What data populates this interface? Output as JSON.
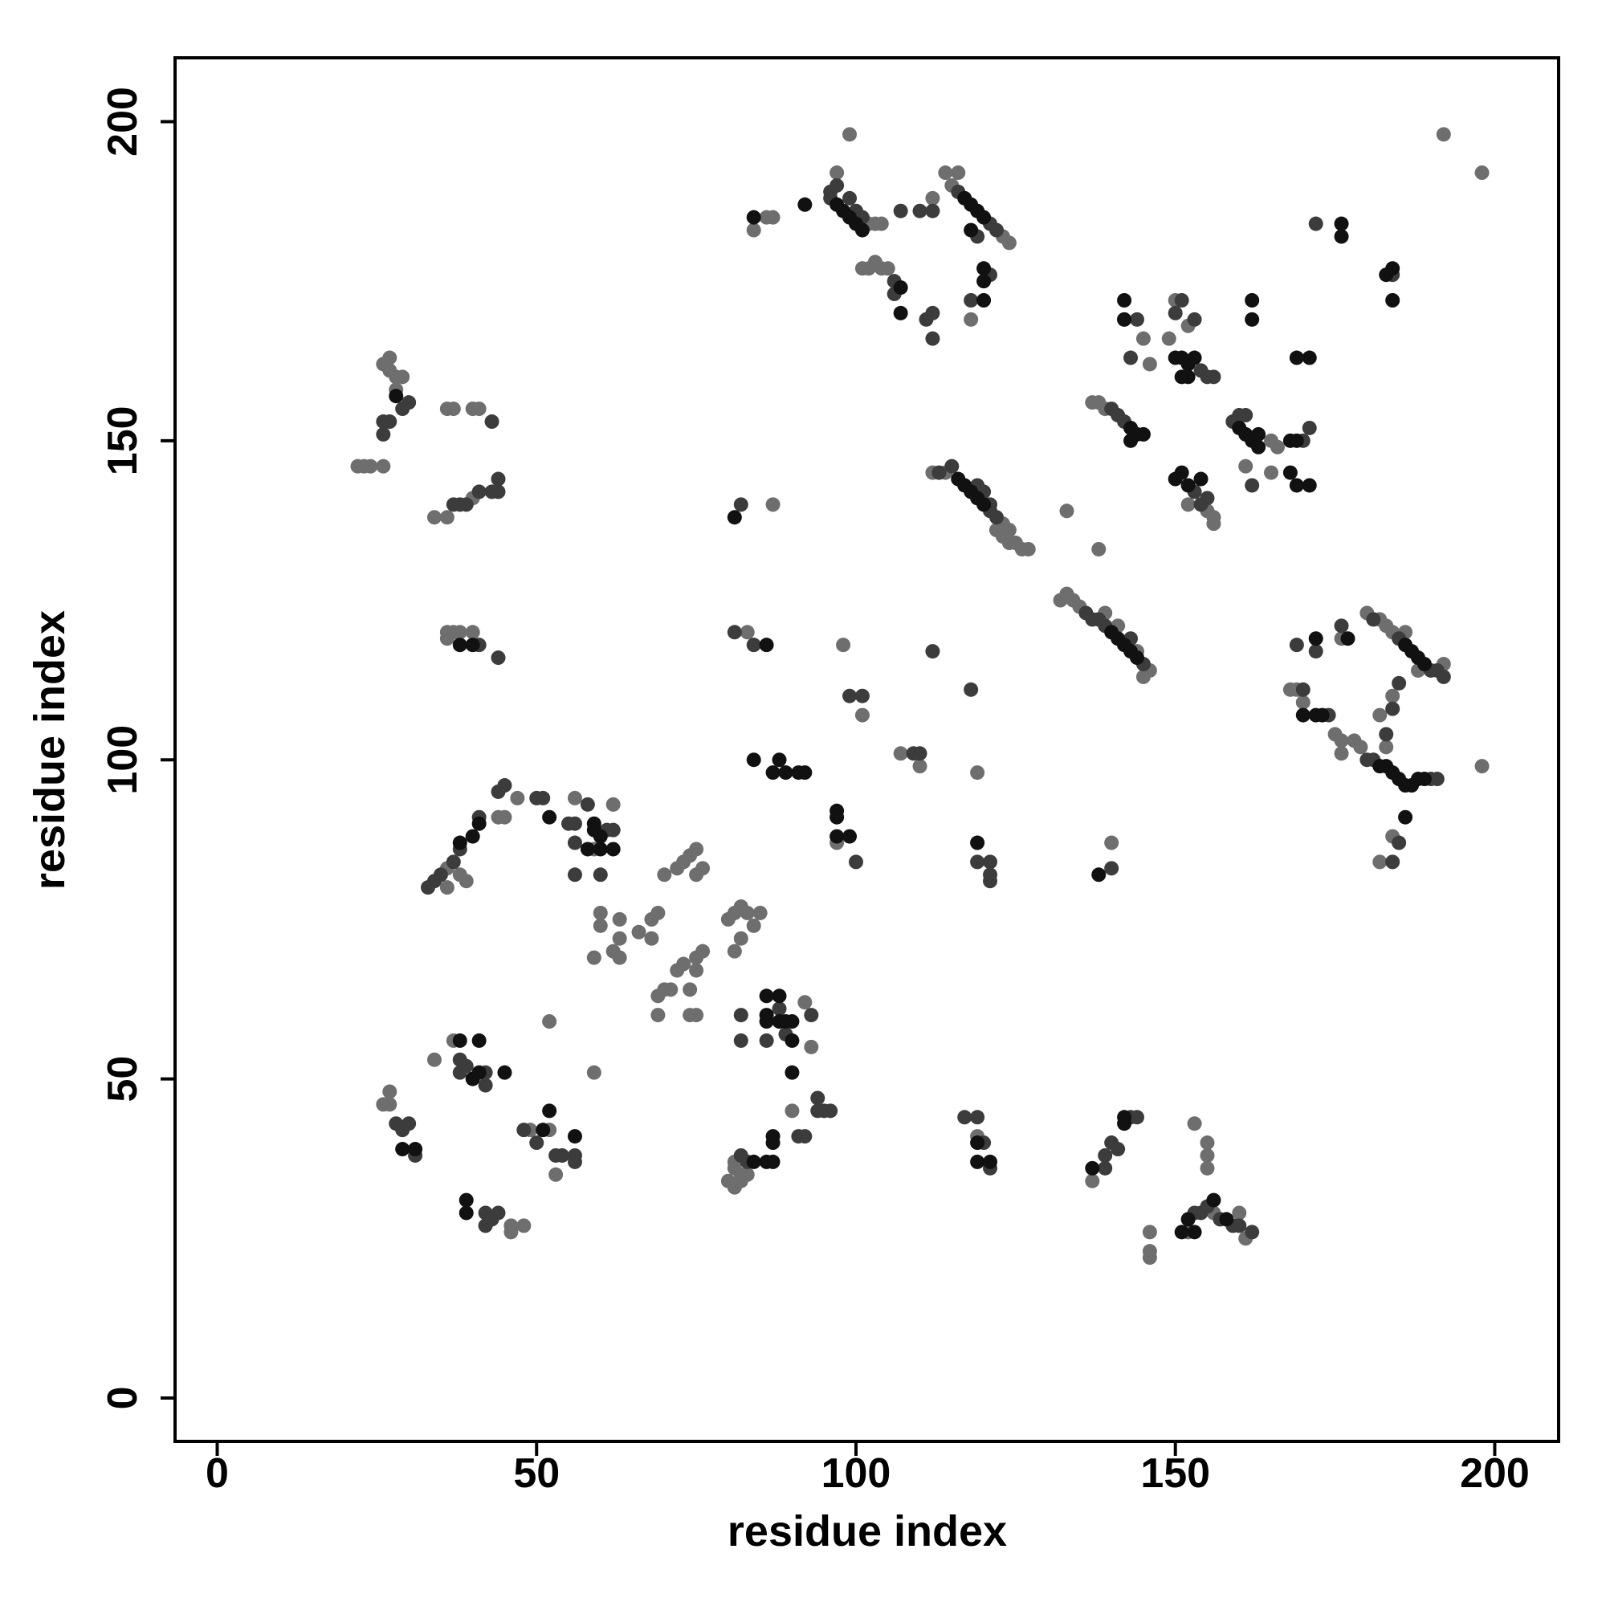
{
  "chart_data": {
    "type": "scatter",
    "xlabel": "residue index",
    "ylabel": "residue index",
    "xlim": [
      -6.6,
      210
    ],
    "ylim": [
      -6.8,
      210
    ],
    "xticks": [
      0,
      50,
      100,
      150,
      200
    ],
    "yticks": [
      0,
      50,
      100,
      150,
      200
    ],
    "series": [
      {
        "color": "#6e6e6e",
        "x": [
          22,
          23,
          24,
          26,
          26,
          27,
          27,
          28,
          29,
          28,
          36,
          37,
          40,
          41,
          34,
          36,
          40,
          36,
          37,
          38,
          36,
          40,
          36,
          38,
          39,
          36,
          47,
          45,
          44,
          56,
          62,
          59,
          60,
          60,
          59,
          63,
          63,
          62,
          63,
          66,
          68,
          69,
          68,
          70,
          69,
          69,
          71,
          72,
          74,
          74,
          75,
          75,
          76,
          75,
          73,
          70,
          72,
          73,
          74,
          75,
          75,
          76,
          80,
          81,
          82,
          83,
          84,
          85,
          81,
          82,
          92,
          93,
          90,
          80,
          81,
          81,
          81,
          82,
          82,
          83,
          26,
          27,
          27,
          34,
          37,
          46,
          48,
          46,
          49,
          52,
          53,
          52,
          59,
          99,
          97,
          102,
          103,
          104,
          101,
          102,
          103,
          104,
          105,
          84,
          86,
          87,
          112,
          114,
          116,
          115,
          123,
          124,
          118,
          192,
          198,
          145,
          146,
          149,
          150,
          152,
          137,
          138,
          139,
          155,
          156,
          156,
          152,
          161,
          165,
          165,
          166,
          112,
          114,
          123,
          124,
          125,
          126,
          127,
          122,
          123,
          124,
          133,
          138,
          132,
          133,
          134,
          135,
          139,
          141,
          144,
          146,
          145,
          180,
          182,
          183,
          184,
          192,
          176,
          168,
          169,
          170,
          175,
          176,
          176,
          178,
          179,
          182,
          183,
          184,
          188,
          186,
          184,
          182,
          198,
          98,
          101,
          110,
          119,
          107,
          83,
          87,
          140,
          137,
          146,
          146,
          146,
          152,
          153,
          155,
          155,
          155,
          160,
          161,
          156,
          97,
          119
        ],
        "y": [
          146,
          146,
          146,
          146,
          162,
          163,
          161,
          160,
          160,
          158,
          155,
          155,
          155,
          155,
          138,
          138,
          141,
          120,
          120,
          120,
          119,
          120,
          83,
          82,
          81,
          80,
          94,
          91,
          91,
          94,
          93,
          86,
          76,
          74,
          69,
          75,
          72,
          70,
          69,
          73,
          75,
          76,
          72,
          64,
          60,
          63,
          64,
          67,
          64,
          60,
          60,
          69,
          70,
          67,
          68,
          82,
          83,
          84,
          85,
          86,
          82,
          83,
          75,
          76,
          77,
          76,
          74,
          76,
          70,
          72,
          62,
          55,
          45,
          34,
          33,
          36,
          37,
          35,
          34,
          35,
          46,
          48,
          46,
          53,
          56,
          27,
          27,
          26,
          42,
          42,
          35,
          59,
          51,
          198,
          192,
          184,
          184,
          184,
          177,
          177,
          178,
          177,
          177,
          183,
          185,
          185,
          188,
          192,
          192,
          190,
          182,
          181,
          169,
          198,
          192,
          166,
          162,
          166,
          172,
          168,
          156,
          156,
          155,
          139,
          138,
          137,
          140,
          146,
          145,
          150,
          149,
          145,
          145,
          137,
          136,
          134,
          133,
          133,
          136,
          135,
          134,
          139,
          133,
          125,
          126,
          125,
          124,
          123,
          121,
          117,
          114,
          113,
          123,
          122,
          121,
          120,
          115,
          119,
          111,
          111,
          109,
          104,
          103,
          101,
          103,
          102,
          107,
          102,
          110,
          114,
          120,
          88,
          84,
          99,
          118,
          107,
          99,
          98,
          101,
          120,
          140,
          87,
          34,
          26,
          23,
          22,
          26,
          43,
          40,
          38,
          36,
          29,
          25,
          29,
          87,
          41
        ]
      },
      {
        "color": "#3c3c3c",
        "x": [
          26,
          27,
          29,
          30,
          26,
          43,
          37,
          38,
          39,
          41,
          43,
          44,
          44,
          41,
          44,
          33,
          34,
          35,
          37,
          38,
          41,
          44,
          45,
          50,
          51,
          55,
          56,
          58,
          61,
          62,
          56,
          56,
          60,
          88,
          89,
          82,
          82,
          86,
          93,
          94,
          95,
          96,
          94,
          91,
          92,
          83,
          82,
          30,
          29,
          28,
          31,
          38,
          39,
          42,
          42,
          38,
          42,
          43,
          44,
          42,
          48,
          50,
          53,
          54,
          56,
          56,
          96,
          96,
          97,
          99,
          100,
          101,
          106,
          106,
          107,
          110,
          112,
          112,
          111,
          112,
          116,
          119,
          121,
          122,
          121,
          118,
          172,
          184,
          142,
          144,
          143,
          150,
          151,
          153,
          154,
          155,
          156,
          140,
          141,
          142,
          153,
          154,
          155,
          159,
          160,
          161,
          162,
          171,
          170,
          113,
          115,
          119,
          120,
          121,
          122,
          121,
          136,
          137,
          138,
          139,
          143,
          145,
          185,
          190,
          191,
          192,
          181,
          176,
          169,
          170,
          172,
          174,
          180,
          181,
          190,
          191,
          183,
          184,
          185,
          185,
          184,
          109,
          110,
          101,
          119,
          121,
          121,
          121,
          100,
          84,
          82,
          81,
          118,
          112,
          99,
          119,
          120,
          121,
          117,
          139,
          140,
          143,
          144,
          139,
          141,
          154,
          153,
          155,
          157,
          159,
          160,
          162,
          140
        ],
        "y": [
          153,
          153,
          155,
          156,
          151,
          153,
          140,
          140,
          140,
          142,
          142,
          142,
          144,
          118,
          116,
          80,
          81,
          82,
          84,
          86,
          91,
          95,
          96,
          94,
          94,
          90,
          90,
          93,
          89,
          89,
          87,
          82,
          82,
          61,
          57,
          56,
          60,
          56,
          60,
          45,
          45,
          45,
          47,
          41,
          41,
          37,
          38,
          43,
          42,
          43,
          38,
          53,
          52,
          51,
          49,
          51,
          29,
          28,
          29,
          27,
          42,
          40,
          38,
          38,
          38,
          37,
          189,
          188,
          190,
          188,
          186,
          185,
          175,
          173,
          186,
          186,
          186,
          170,
          169,
          166,
          189,
          182,
          184,
          183,
          176,
          172,
          184,
          176,
          169,
          169,
          163,
          170,
          172,
          169,
          161,
          160,
          160,
          155,
          154,
          153,
          142,
          140,
          141,
          153,
          154,
          154,
          143,
          152,
          150,
          145,
          146,
          143,
          142,
          139,
          138,
          140,
          123,
          122,
          122,
          121,
          119,
          115,
          119,
          114,
          114,
          113,
          122,
          121,
          118,
          111,
          117,
          107,
          100,
          100,
          97,
          97,
          104,
          108,
          112,
          87,
          84,
          101,
          101,
          110,
          84,
          84,
          82,
          81,
          84,
          118,
          140,
          120,
          111,
          117,
          110,
          44,
          40,
          36,
          44,
          38,
          40,
          44,
          44,
          36,
          39,
          29,
          29,
          30,
          28,
          27,
          27,
          26,
          83
        ]
      },
      {
        "color": "#111111",
        "x": [
          28,
          38,
          40,
          41,
          52,
          59,
          59,
          60,
          58,
          60,
          62,
          86,
          86,
          88,
          89,
          90,
          86,
          88,
          90,
          90,
          87,
          87,
          87,
          86,
          84,
          31,
          29,
          38,
          41,
          40,
          41,
          45,
          39,
          39,
          52,
          56,
          51,
          97,
          98,
          99,
          100,
          101,
          92,
          84,
          107,
          107,
          117,
          118,
          119,
          120,
          118,
          120,
          120,
          120,
          176,
          176,
          184,
          183,
          184,
          142,
          142,
          150,
          151,
          152,
          153,
          151,
          152,
          162,
          162,
          169,
          171,
          143,
          144,
          145,
          143,
          150,
          151,
          152,
          154,
          160,
          161,
          162,
          163,
          163,
          168,
          169,
          168,
          169,
          171,
          116,
          117,
          118,
          119,
          120,
          141,
          142,
          143,
          144,
          140,
          186,
          187,
          188,
          189,
          182,
          183,
          184,
          185,
          186,
          187,
          188,
          189,
          186,
          172,
          173,
          170,
          172,
          177,
          88,
          87,
          89,
          91,
          92,
          97,
          97,
          97,
          99,
          84,
          81,
          86,
          38,
          40,
          119,
          119,
          119,
          121,
          142,
          142,
          137,
          152,
          151,
          153,
          156,
          158,
          138
        ],
        "y": [
          157,
          87,
          88,
          90,
          91,
          90,
          89,
          88,
          86,
          86,
          86,
          63,
          60,
          59,
          59,
          59,
          59,
          63,
          56,
          51,
          41,
          40,
          37,
          37,
          37,
          39,
          39,
          56,
          56,
          50,
          51,
          51,
          31,
          29,
          45,
          41,
          42,
          187,
          186,
          185,
          184,
          183,
          187,
          185,
          174,
          170,
          188,
          187,
          186,
          185,
          183,
          177,
          175,
          172,
          184,
          182,
          177,
          176,
          172,
          172,
          169,
          163,
          163,
          162,
          163,
          160,
          160,
          172,
          169,
          163,
          163,
          152,
          151,
          151,
          150,
          144,
          145,
          143,
          144,
          152,
          151,
          150,
          151,
          149,
          150,
          150,
          145,
          143,
          143,
          144,
          143,
          142,
          141,
          140,
          119,
          118,
          117,
          116,
          120,
          118,
          117,
          116,
          115,
          99,
          99,
          98,
          97,
          96,
          96,
          97,
          97,
          91,
          107,
          107,
          107,
          119,
          119,
          100,
          98,
          98,
          98,
          98,
          92,
          91,
          88,
          88,
          100,
          138,
          118,
          118,
          118,
          87,
          40,
          37,
          37,
          44,
          43,
          36,
          28,
          26,
          26,
          31,
          28,
          82
        ]
      }
    ]
  }
}
